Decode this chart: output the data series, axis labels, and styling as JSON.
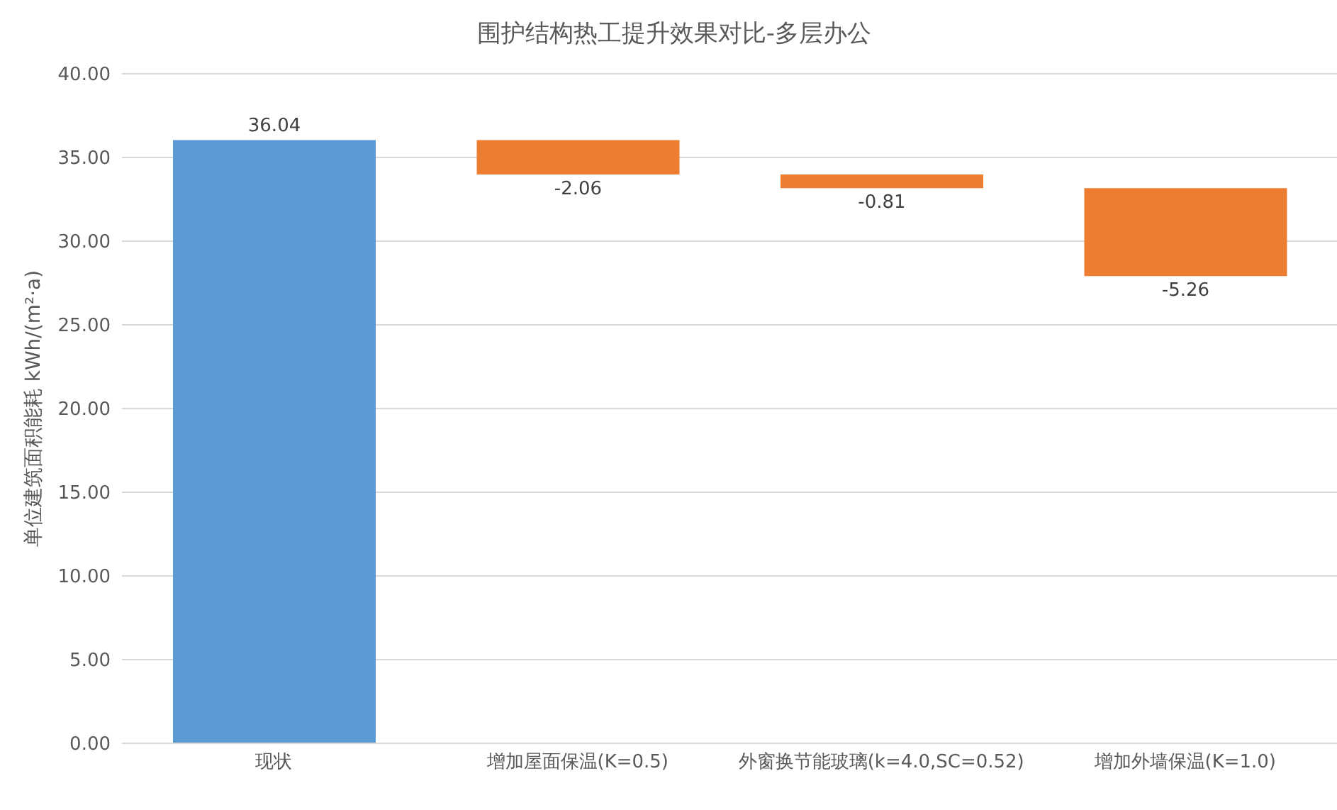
{
  "chart_data": {
    "type": "bar",
    "title": "围护结构热工提升效果对比-多层办公",
    "ylabel": "单位建筑面积能耗 kWh/(m²·a)",
    "categories": [
      "现状",
      "增加屋面保温(K=0.5)",
      "外窗换节能玻璃(k=4.0,SC=0.52)",
      "增加外墙保温(K=1.0)"
    ],
    "values": [
      36.04,
      -2.06,
      -0.81,
      -5.26
    ],
    "base": [
      0,
      36.04,
      33.98,
      33.17
    ],
    "colors": [
      "#5b9bd5",
      "#ed7d31",
      "#ed7d31",
      "#ed7d31"
    ],
    "data_labels": true,
    "ylim": [
      0,
      40
    ],
    "yticks": [
      {
        "value": 0,
        "label": "0.00"
      },
      {
        "value": 5,
        "label": "5.00"
      },
      {
        "value": 10,
        "label": "10.00"
      },
      {
        "value": 15,
        "label": "15.00"
      },
      {
        "value": 20,
        "label": "20.00"
      },
      {
        "value": 25,
        "label": "25.00"
      },
      {
        "value": 30,
        "label": "30.00"
      },
      {
        "value": 35,
        "label": "35.00"
      },
      {
        "value": 40,
        "label": "40.00"
      }
    ],
    "grid": "y"
  }
}
